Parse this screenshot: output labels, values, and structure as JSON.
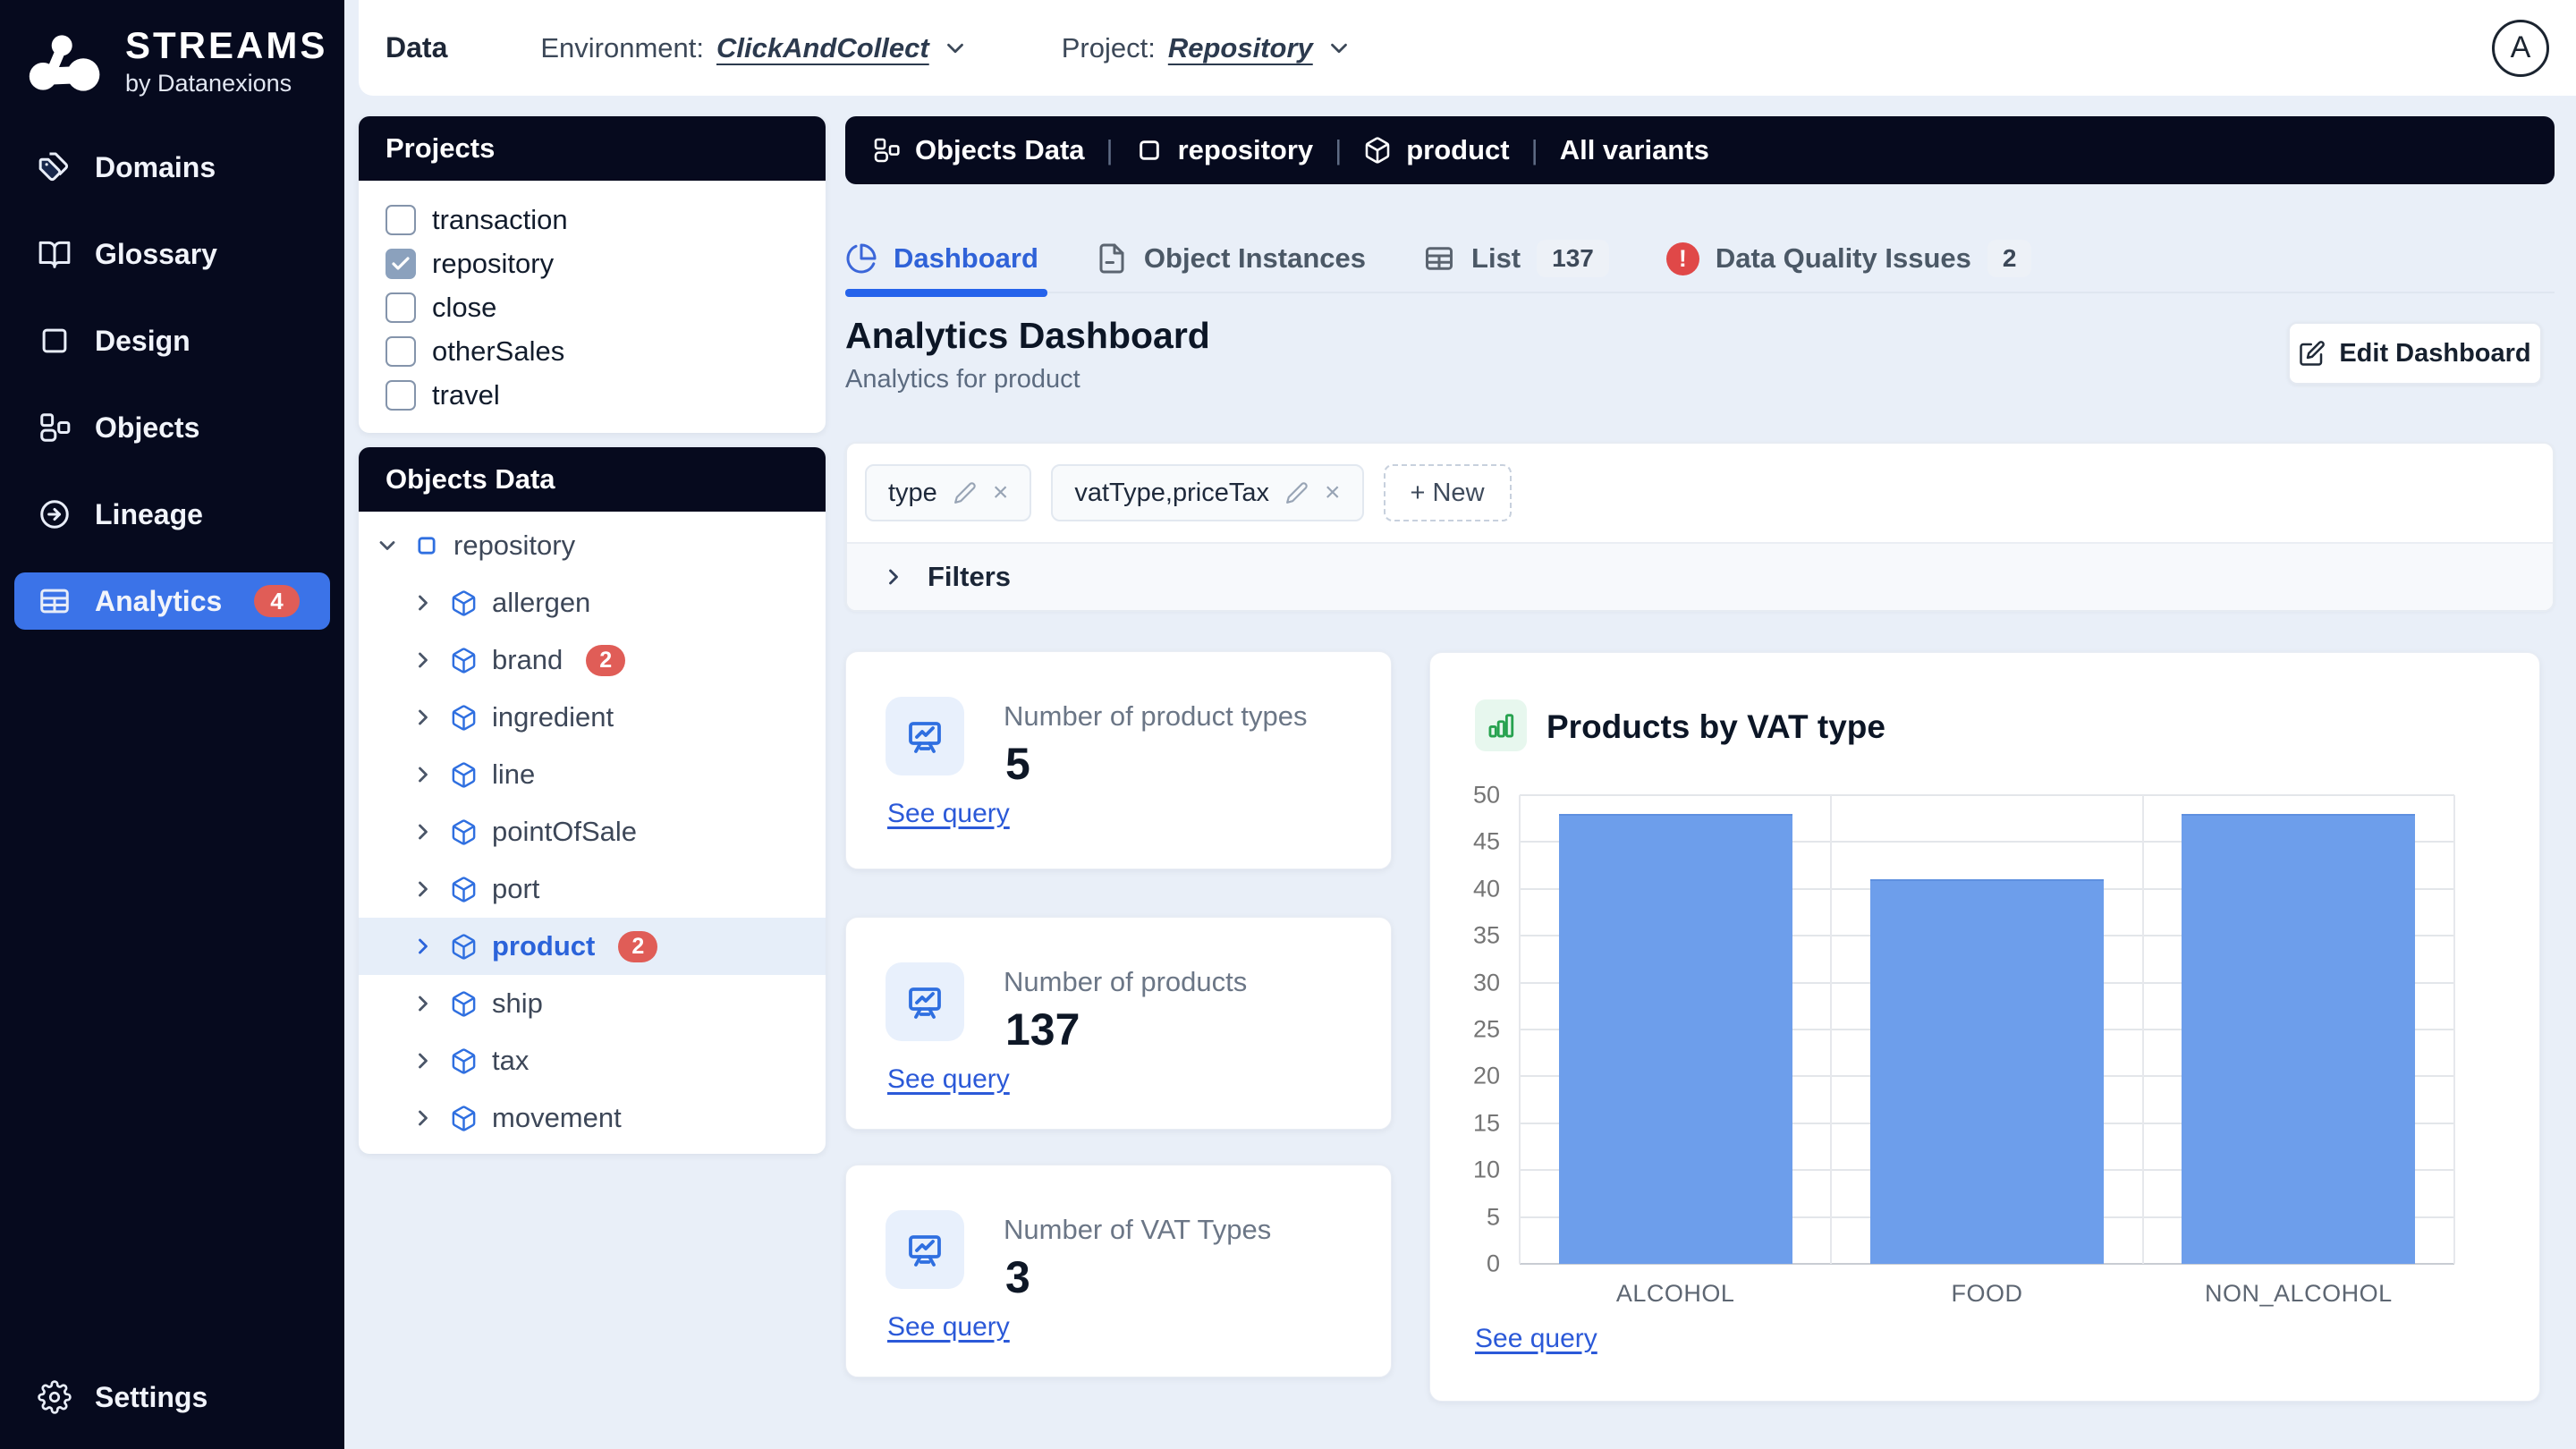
{
  "brand": {
    "name": "STREAMS",
    "tagline": "by Datanexions"
  },
  "topbar": {
    "section": "Data",
    "environment_label": "Environment:",
    "environment_value": "ClickAndCollect",
    "project_label": "Project:",
    "project_value": "Repository",
    "avatar_initial": "A"
  },
  "sidebar": {
    "items": [
      {
        "label": "Domains"
      },
      {
        "label": "Glossary"
      },
      {
        "label": "Design"
      },
      {
        "label": "Objects"
      },
      {
        "label": "Lineage"
      },
      {
        "label": "Analytics",
        "badge": "4",
        "active": true
      }
    ],
    "settings_label": "Settings"
  },
  "projects_panel": {
    "title": "Projects",
    "items": [
      {
        "label": "transaction",
        "checked": false
      },
      {
        "label": "repository",
        "checked": true
      },
      {
        "label": "close",
        "checked": false
      },
      {
        "label": "otherSales",
        "checked": false
      },
      {
        "label": "travel",
        "checked": false
      }
    ]
  },
  "objects_panel": {
    "title": "Objects Data",
    "root": {
      "label": "repository"
    },
    "children": [
      {
        "label": "allergen"
      },
      {
        "label": "brand",
        "badge": "2"
      },
      {
        "label": "ingredient"
      },
      {
        "label": "line"
      },
      {
        "label": "pointOfSale"
      },
      {
        "label": "port"
      },
      {
        "label": "product",
        "badge": "2",
        "selected": true
      },
      {
        "label": "ship"
      },
      {
        "label": "tax"
      },
      {
        "label": "movement"
      }
    ]
  },
  "breadcrumb": {
    "segments": [
      "Objects Data",
      "repository",
      "product",
      "All variants"
    ]
  },
  "tabs": [
    {
      "label": "Dashboard",
      "active": true
    },
    {
      "label": "Object Instances"
    },
    {
      "label": "List",
      "badge": "137"
    },
    {
      "label": "Data Quality Issues",
      "badge": "2"
    }
  ],
  "dashboard": {
    "title": "Analytics Dashboard",
    "subtitle": "Analytics for product",
    "edit_button": "Edit Dashboard"
  },
  "groupings": {
    "chips": [
      {
        "label": "type"
      },
      {
        "label": "vatType,priceTax"
      }
    ],
    "new_chip": "+ New",
    "filters_label": "Filters"
  },
  "kpis": [
    {
      "label": "Number of product types",
      "value": "5",
      "link": "See query"
    },
    {
      "label": "Number of products",
      "value": "137",
      "link": "See query"
    },
    {
      "label": "Number of VAT Types",
      "value": "3",
      "link": "See query"
    }
  ],
  "chart_data": {
    "type": "bar",
    "title": "Products by VAT type",
    "categories": [
      "ALCOHOL",
      "FOOD",
      "NON_ALCOHOL"
    ],
    "values": [
      48,
      41,
      48
    ],
    "ylim": [
      0,
      50
    ],
    "ytick_step": 5,
    "bar_color": "#6d9eeb",
    "grid": true,
    "legend": "none",
    "link": "See query"
  }
}
